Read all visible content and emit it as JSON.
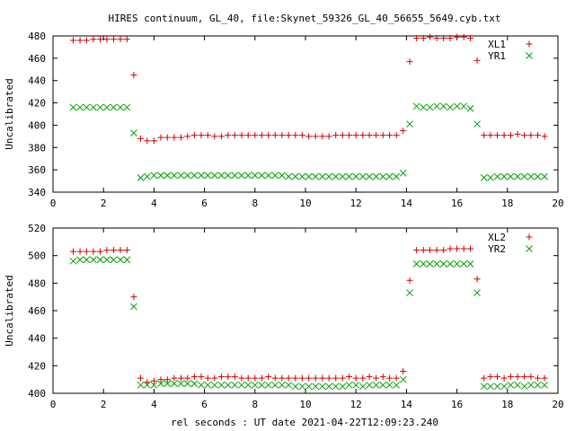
{
  "title": "HIRES continuum, GL_40, file:Skynet_59326_GL_40_56655_5649.cyb.txt",
  "xlabel": "rel seconds : UT date 2021-04-22T12:09:23.240",
  "colors": {
    "red": "#d40000",
    "green": "#00a000"
  },
  "chart_data": [
    {
      "type": "scatter",
      "ylabel": "Uncalibrated",
      "xlim": [
        0,
        20
      ],
      "ylim": [
        340,
        480
      ],
      "xticks": [
        "0",
        "2",
        "4",
        "6",
        "8",
        "10",
        "12",
        "14",
        "16",
        "18",
        "20"
      ],
      "yticks": [
        "340",
        "360",
        "380",
        "400",
        "420",
        "440",
        "460",
        "480"
      ],
      "legend_position": "top-right",
      "x": [
        0.8,
        1.07,
        1.33,
        1.6,
        1.87,
        2.13,
        2.4,
        2.67,
        2.93,
        3.2,
        3.47,
        3.73,
        4.0,
        4.27,
        4.53,
        4.8,
        5.07,
        5.33,
        5.6,
        5.87,
        6.13,
        6.4,
        6.67,
        6.93,
        7.2,
        7.47,
        7.73,
        8.0,
        8.27,
        8.53,
        8.8,
        9.07,
        9.33,
        9.6,
        9.87,
        10.13,
        10.4,
        10.67,
        10.93,
        11.2,
        11.47,
        11.73,
        12.0,
        12.27,
        12.53,
        12.8,
        13.07,
        13.33,
        13.6,
        13.87,
        14.13,
        14.4,
        14.67,
        14.93,
        15.2,
        15.47,
        15.73,
        16.0,
        16.27,
        16.53,
        16.8,
        17.07,
        17.33,
        17.6,
        17.87,
        18.13,
        18.4,
        18.67,
        18.93,
        19.2,
        19.47
      ],
      "series": [
        {
          "name": "XL1",
          "marker": "plus",
          "color": "#d40000",
          "values": [
            476,
            476,
            476,
            477,
            477,
            477,
            477,
            477,
            477,
            445,
            388,
            386,
            386,
            389,
            389,
            389,
            389,
            390,
            391,
            391,
            391,
            390,
            390,
            391,
            391,
            391,
            391,
            391,
            391,
            391,
            391,
            391,
            391,
            391,
            391,
            390,
            390,
            390,
            390,
            391,
            391,
            391,
            391,
            391,
            391,
            391,
            391,
            391,
            391,
            395,
            457,
            478,
            478,
            479,
            478,
            478,
            478,
            479,
            479,
            478,
            458,
            391,
            391,
            391,
            391,
            391,
            392,
            391,
            391,
            391,
            390
          ]
        },
        {
          "name": "YR1",
          "marker": "cross",
          "color": "#00a000",
          "values": [
            416,
            416,
            416,
            416,
            416,
            416,
            416,
            416,
            416,
            393,
            353,
            354,
            355,
            355,
            355,
            355,
            355,
            355,
            355,
            355,
            355,
            355,
            355,
            355,
            355,
            355,
            355,
            355,
            355,
            355,
            355,
            355,
            354,
            354,
            354,
            354,
            354,
            354,
            354,
            354,
            354,
            354,
            354,
            354,
            354,
            354,
            354,
            354,
            354,
            357,
            401,
            417,
            416,
            416,
            417,
            417,
            416,
            417,
            417,
            415,
            401,
            353,
            353,
            354,
            354,
            354,
            354,
            354,
            354,
            354,
            354
          ]
        }
      ]
    },
    {
      "type": "scatter",
      "ylabel": "Uncalibrated",
      "xlim": [
        0,
        20
      ],
      "ylim": [
        400,
        520
      ],
      "xticks": [
        "0",
        "2",
        "4",
        "6",
        "8",
        "10",
        "12",
        "14",
        "16",
        "18",
        "20"
      ],
      "yticks": [
        "400",
        "420",
        "440",
        "460",
        "480",
        "500",
        "520"
      ],
      "legend_position": "top-right",
      "x": [
        0.8,
        1.07,
        1.33,
        1.6,
        1.87,
        2.13,
        2.4,
        2.67,
        2.93,
        3.2,
        3.47,
        3.73,
        4.0,
        4.27,
        4.53,
        4.8,
        5.07,
        5.33,
        5.6,
        5.87,
        6.13,
        6.4,
        6.67,
        6.93,
        7.2,
        7.47,
        7.73,
        8.0,
        8.27,
        8.53,
        8.8,
        9.07,
        9.33,
        9.6,
        9.87,
        10.13,
        10.4,
        10.67,
        10.93,
        11.2,
        11.47,
        11.73,
        12.0,
        12.27,
        12.53,
        12.8,
        13.07,
        13.33,
        13.6,
        13.87,
        14.13,
        14.4,
        14.67,
        14.93,
        15.2,
        15.47,
        15.73,
        16.0,
        16.27,
        16.53,
        16.8,
        17.07,
        17.33,
        17.6,
        17.87,
        18.13,
        18.4,
        18.67,
        18.93,
        19.2,
        19.47
      ],
      "series": [
        {
          "name": "XL2",
          "marker": "plus",
          "color": "#d40000",
          "values": [
            503,
            503,
            503,
            503,
            503,
            504,
            504,
            504,
            504,
            470,
            411,
            408,
            409,
            410,
            410,
            411,
            411,
            411,
            412,
            412,
            411,
            411,
            412,
            412,
            412,
            411,
            411,
            411,
            411,
            412,
            411,
            411,
            411,
            411,
            411,
            411,
            411,
            411,
            411,
            411,
            411,
            412,
            411,
            411,
            412,
            411,
            412,
            411,
            411,
            416,
            482,
            504,
            504,
            504,
            504,
            504,
            505,
            505,
            505,
            505,
            483,
            411,
            412,
            412,
            411,
            412,
            412,
            412,
            412,
            411,
            411
          ]
        },
        {
          "name": "YR2",
          "marker": "cross",
          "color": "#00a000",
          "values": [
            496,
            497,
            497,
            497,
            497,
            497,
            497,
            497,
            497,
            463,
            406,
            406,
            406,
            407,
            407,
            407,
            407,
            407,
            407,
            406,
            406,
            406,
            406,
            406,
            406,
            406,
            406,
            406,
            406,
            406,
            406,
            406,
            406,
            405,
            405,
            405,
            405,
            405,
            405,
            405,
            405,
            406,
            406,
            405,
            406,
            406,
            406,
            406,
            406,
            410,
            473,
            494,
            494,
            494,
            494,
            494,
            494,
            494,
            494,
            494,
            473,
            405,
            405,
            405,
            405,
            406,
            406,
            405,
            406,
            406,
            406
          ]
        }
      ]
    }
  ]
}
